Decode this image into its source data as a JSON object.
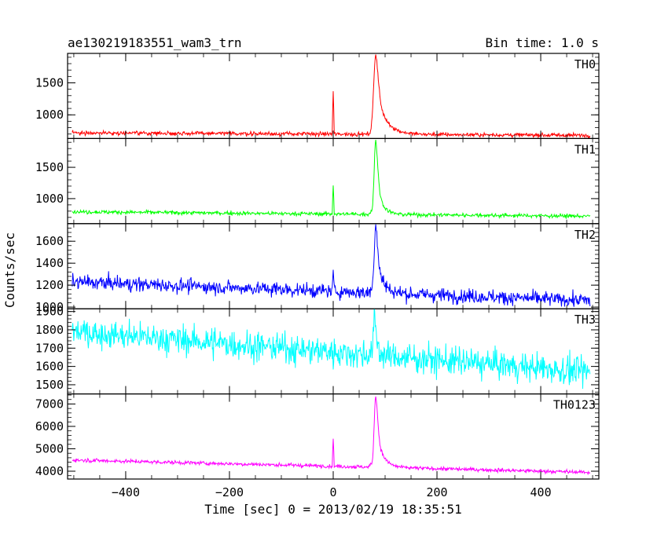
{
  "chart_data": {
    "type": "line",
    "title": "ae130219183551_wam3_trn",
    "subtitle": "Bin time: 1.0 s",
    "xlabel": "Time [sec] 0 = 2013/02/19 18:35:51",
    "ylabel": "Counts/sec",
    "xlim": [
      -512,
      512
    ],
    "x_ticks": [
      -400,
      -200,
      0,
      200,
      400
    ],
    "x_tick_labels": [
      "−400",
      "−200",
      "0",
      "200",
      "400"
    ],
    "grid": false,
    "panels": [
      {
        "label": "TH0",
        "color": "#ff0000",
        "ylim": [
          630,
          1960
        ],
        "y_ticks": [
          1000,
          1500
        ],
        "y_tick_labels": [
          "1000",
          "1500"
        ],
        "baseline": {
          "start": 720,
          "end": 680
        },
        "noise": 22,
        "precursor": {
          "x": 0,
          "peak": 1370
        },
        "burst": {
          "x": 82,
          "peak": 1950,
          "fwhm": 8,
          "decay": 18
        },
        "series": [
          {
            "x_range": [
              -503,
              495
            ],
            "bin": 1.0
          }
        ]
      },
      {
        "label": "TH1",
        "color": "#00ff00",
        "ylim": [
          600,
          1960
        ],
        "y_ticks": [
          1000,
          1500
        ],
        "y_tick_labels": [
          "1000",
          "1500"
        ],
        "baseline": {
          "start": 790,
          "end": 720
        },
        "noise": 22,
        "precursor": {
          "x": 0,
          "peak": 1210
        },
        "burst": {
          "x": 82,
          "peak": 1950,
          "fwhm": 6,
          "decay": 10
        },
        "series": [
          {
            "x_range": [
              -503,
              495
            ],
            "bin": 1.0
          }
        ]
      },
      {
        "label": "TH2",
        "color": "#0000ff",
        "ylim": [
          985,
          1760
        ],
        "y_ticks": [
          1000,
          1200,
          1400,
          1600
        ],
        "y_tick_labels": [
          "1000",
          "1200",
          "1400",
          "1600"
        ],
        "baseline": {
          "start": 1230,
          "end": 1060
        },
        "noise": 45,
        "precursor": {
          "x": 0,
          "peak": 1340
        },
        "burst": {
          "x": 82,
          "peak": 1760,
          "fwhm": 6,
          "decay": 12
        },
        "series": [
          {
            "x_range": [
              -503,
              495
            ],
            "bin": 1.0
          }
        ]
      },
      {
        "label": "TH3",
        "color": "#00ffff",
        "ylim": [
          1450,
          1915
        ],
        "y_ticks": [
          1500,
          1600,
          1700,
          1800,
          1900
        ],
        "y_tick_labels": [
          "1500",
          "1600",
          "1700",
          "1800",
          "1900"
        ],
        "baseline": {
          "start": 1790,
          "end": 1570
        },
        "noise": 55,
        "precursor": null,
        "burst": {
          "x": 80,
          "peak": 1860,
          "fwhm": 5,
          "decay": 6
        },
        "series": [
          {
            "x_range": [
              -503,
              495
            ],
            "bin": 1.0
          }
        ]
      },
      {
        "label": "TH0123",
        "color": "#ff00ff",
        "ylim": [
          3650,
          7450
        ],
        "y_ticks": [
          4000,
          5000,
          6000,
          7000
        ],
        "y_tick_labels": [
          "4000",
          "5000",
          "6000",
          "7000"
        ],
        "baseline": {
          "start": 4500,
          "end": 3950
        },
        "noise": 60,
        "precursor": {
          "x": 0,
          "peak": 5450
        },
        "burst": {
          "x": 82,
          "peak": 7400,
          "fwhm": 6,
          "decay": 12
        },
        "series": [
          {
            "x_range": [
              -503,
              495
            ],
            "bin": 1.0
          }
        ]
      }
    ]
  }
}
